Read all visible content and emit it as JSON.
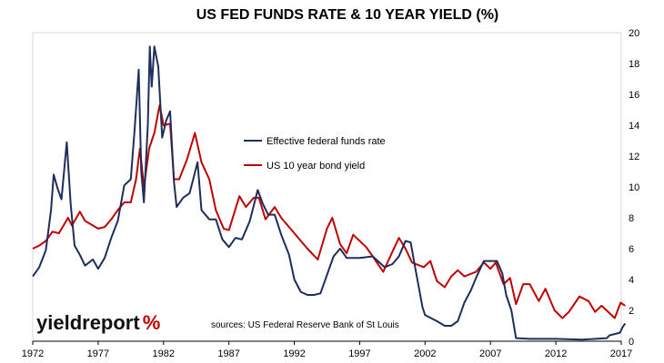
{
  "chart_data": {
    "type": "line",
    "title": "US FED FUNDS RATE & 10 YEAR YIELD (%)",
    "xlabel": "",
    "ylabel": "",
    "xlim": [
      1972,
      2017
    ],
    "ylim": [
      0,
      20
    ],
    "x_ticks": [
      "1972",
      "1977",
      "1982",
      "1987",
      "1992",
      "1997",
      "2002",
      "2007",
      "2012",
      "2017"
    ],
    "y_ticks": [
      "0",
      "2",
      "4",
      "6",
      "8",
      "10",
      "12",
      "14",
      "16",
      "18",
      "20"
    ],
    "y_axis_side": "right",
    "grid": false,
    "legend_position": "center",
    "series": [
      {
        "name": "Effective federal funds rate",
        "color": "#1f2d5c",
        "points": [
          [
            1972.0,
            4.2
          ],
          [
            1972.5,
            4.8
          ],
          [
            1973.0,
            5.9
          ],
          [
            1973.4,
            8.5
          ],
          [
            1973.6,
            10.8
          ],
          [
            1973.9,
            9.9
          ],
          [
            1974.2,
            9.2
          ],
          [
            1974.6,
            12.9
          ],
          [
            1974.9,
            8.9
          ],
          [
            1975.2,
            6.2
          ],
          [
            1975.6,
            5.6
          ],
          [
            1976.0,
            4.9
          ],
          [
            1976.6,
            5.3
          ],
          [
            1977.0,
            4.7
          ],
          [
            1977.5,
            5.4
          ],
          [
            1978.0,
            6.7
          ],
          [
            1978.5,
            7.8
          ],
          [
            1979.0,
            10.1
          ],
          [
            1979.5,
            10.5
          ],
          [
            1979.8,
            13.8
          ],
          [
            1980.1,
            17.6
          ],
          [
            1980.3,
            11.0
          ],
          [
            1980.5,
            9.0
          ],
          [
            1980.8,
            14.0
          ],
          [
            1980.95,
            19.1
          ],
          [
            1981.1,
            16.5
          ],
          [
            1981.3,
            19.1
          ],
          [
            1981.6,
            17.8
          ],
          [
            1981.9,
            13.2
          ],
          [
            1982.2,
            14.3
          ],
          [
            1982.5,
            14.9
          ],
          [
            1982.8,
            10.3
          ],
          [
            1983.0,
            8.7
          ],
          [
            1983.5,
            9.3
          ],
          [
            1984.0,
            9.6
          ],
          [
            1984.6,
            11.6
          ],
          [
            1984.9,
            8.5
          ],
          [
            1985.5,
            7.9
          ],
          [
            1986.0,
            7.9
          ],
          [
            1986.5,
            6.6
          ],
          [
            1987.0,
            6.1
          ],
          [
            1987.5,
            6.7
          ],
          [
            1988.0,
            6.6
          ],
          [
            1988.6,
            7.8
          ],
          [
            1989.2,
            9.8
          ],
          [
            1989.6,
            8.9
          ],
          [
            1990.0,
            8.2
          ],
          [
            1990.5,
            8.2
          ],
          [
            1991.0,
            6.9
          ],
          [
            1991.6,
            5.6
          ],
          [
            1992.0,
            4.0
          ],
          [
            1992.5,
            3.2
          ],
          [
            1993.0,
            3.0
          ],
          [
            1993.5,
            3.0
          ],
          [
            1994.0,
            3.1
          ],
          [
            1994.5,
            4.3
          ],
          [
            1995.0,
            5.5
          ],
          [
            1995.5,
            6.0
          ],
          [
            1996.0,
            5.4
          ],
          [
            1997.0,
            5.4
          ],
          [
            1998.0,
            5.5
          ],
          [
            1998.9,
            4.8
          ],
          [
            1999.5,
            5.0
          ],
          [
            2000.0,
            5.5
          ],
          [
            2000.5,
            6.5
          ],
          [
            2000.9,
            6.4
          ],
          [
            2001.3,
            4.5
          ],
          [
            2001.8,
            2.2
          ],
          [
            2002.0,
            1.7
          ],
          [
            2002.9,
            1.3
          ],
          [
            2003.5,
            1.0
          ],
          [
            2004.0,
            1.0
          ],
          [
            2004.5,
            1.3
          ],
          [
            2005.0,
            2.5
          ],
          [
            2005.5,
            3.3
          ],
          [
            2006.0,
            4.3
          ],
          [
            2006.5,
            5.2
          ],
          [
            2007.5,
            5.2
          ],
          [
            2007.9,
            4.4
          ],
          [
            2008.2,
            3.0
          ],
          [
            2008.6,
            2.0
          ],
          [
            2008.95,
            0.2
          ],
          [
            2010.0,
            0.15
          ],
          [
            2012.0,
            0.15
          ],
          [
            2014.0,
            0.1
          ],
          [
            2015.9,
            0.2
          ],
          [
            2016.1,
            0.38
          ],
          [
            2016.9,
            0.55
          ],
          [
            2017.1,
            0.9
          ],
          [
            2017.3,
            1.15
          ]
        ]
      },
      {
        "name": "US 10 year bond yield",
        "color": "#c00000",
        "points": [
          [
            1972.0,
            6.0
          ],
          [
            1972.5,
            6.2
          ],
          [
            1973.0,
            6.5
          ],
          [
            1973.5,
            7.1
          ],
          [
            1974.0,
            7.0
          ],
          [
            1974.7,
            8.0
          ],
          [
            1975.0,
            7.5
          ],
          [
            1975.6,
            8.4
          ],
          [
            1976.0,
            7.8
          ],
          [
            1977.0,
            7.3
          ],
          [
            1977.5,
            7.4
          ],
          [
            1978.0,
            7.9
          ],
          [
            1978.5,
            8.5
          ],
          [
            1979.0,
            9.0
          ],
          [
            1979.5,
            9.0
          ],
          [
            1979.9,
            10.5
          ],
          [
            1980.2,
            12.5
          ],
          [
            1980.5,
            10.0
          ],
          [
            1980.9,
            12.5
          ],
          [
            1981.3,
            13.5
          ],
          [
            1981.7,
            15.3
          ],
          [
            1982.0,
            14.0
          ],
          [
            1982.5,
            14.1
          ],
          [
            1982.8,
            10.5
          ],
          [
            1983.2,
            10.5
          ],
          [
            1983.8,
            11.8
          ],
          [
            1984.4,
            13.5
          ],
          [
            1984.9,
            11.6
          ],
          [
            1985.5,
            10.5
          ],
          [
            1986.0,
            8.5
          ],
          [
            1986.6,
            7.3
          ],
          [
            1987.0,
            7.2
          ],
          [
            1987.8,
            9.4
          ],
          [
            1988.3,
            8.7
          ],
          [
            1988.9,
            9.3
          ],
          [
            1989.3,
            9.3
          ],
          [
            1989.8,
            7.9
          ],
          [
            1990.5,
            8.7
          ],
          [
            1991.0,
            8.0
          ],
          [
            1992.0,
            7.0
          ],
          [
            1993.0,
            6.0
          ],
          [
            1993.8,
            5.3
          ],
          [
            1994.5,
            7.3
          ],
          [
            1994.9,
            8.0
          ],
          [
            1995.5,
            6.3
          ],
          [
            1996.0,
            5.7
          ],
          [
            1996.5,
            6.9
          ],
          [
            1997.5,
            6.1
          ],
          [
            1998.0,
            5.5
          ],
          [
            1998.8,
            4.5
          ],
          [
            1999.5,
            5.8
          ],
          [
            2000.0,
            6.7
          ],
          [
            2000.5,
            6.0
          ],
          [
            2001.0,
            5.1
          ],
          [
            2001.9,
            4.8
          ],
          [
            2002.4,
            5.2
          ],
          [
            2002.9,
            3.9
          ],
          [
            2003.5,
            3.5
          ],
          [
            2004.0,
            4.2
          ],
          [
            2004.5,
            4.6
          ],
          [
            2005.0,
            4.2
          ],
          [
            2005.9,
            4.5
          ],
          [
            2006.5,
            5.1
          ],
          [
            2007.0,
            4.7
          ],
          [
            2007.4,
            5.1
          ],
          [
            2008.0,
            3.7
          ],
          [
            2008.5,
            4.1
          ],
          [
            2008.95,
            2.4
          ],
          [
            2009.5,
            3.7
          ],
          [
            2010.0,
            3.7
          ],
          [
            2010.7,
            2.6
          ],
          [
            2011.2,
            3.4
          ],
          [
            2011.9,
            2.0
          ],
          [
            2012.5,
            1.5
          ],
          [
            2013.0,
            1.9
          ],
          [
            2013.8,
            2.9
          ],
          [
            2014.5,
            2.6
          ],
          [
            2015.0,
            1.9
          ],
          [
            2015.5,
            2.3
          ],
          [
            2016.5,
            1.5
          ],
          [
            2016.95,
            2.5
          ],
          [
            2017.3,
            2.3
          ]
        ]
      }
    ]
  },
  "annotations": {
    "source_text": "sources: US Federal Reserve Bank of St Louis",
    "logo_word": "yieldreport",
    "logo_mark": "%"
  }
}
